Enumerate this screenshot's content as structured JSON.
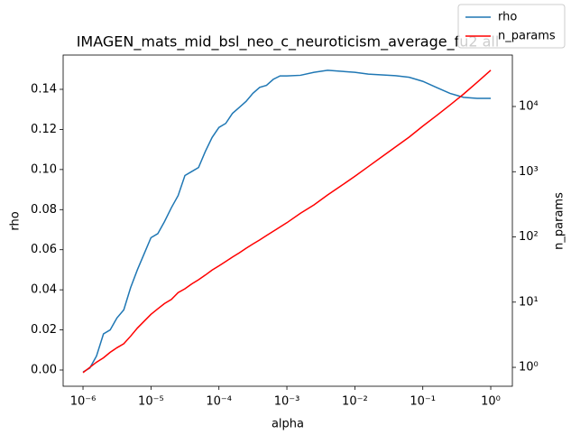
{
  "chart_data": {
    "type": "line",
    "title": "IMAGEN_mats_mid_bsl_neo_c_neuroticism_average_fu2 all",
    "x_label": "alpha",
    "y_label": "rho",
    "y2_label": "n_params",
    "x_scale": "log",
    "y2_scale": "log",
    "legend": "upper right",
    "x": [
      1e-06,
      1.26e-06,
      1.58e-06,
      2e-06,
      2.51e-06,
      3.16e-06,
      3.98e-06,
      5.01e-06,
      6.31e-06,
      7.94e-06,
      1e-05,
      1.26e-05,
      1.58e-05,
      2e-05,
      2.51e-05,
      3.16e-05,
      3.98e-05,
      5.01e-05,
      6.31e-05,
      7.94e-05,
      0.0001,
      0.000126,
      0.000158,
      0.0002,
      0.000251,
      0.000316,
      0.000398,
      0.000501,
      0.000631,
      0.000794,
      0.001,
      0.00158,
      0.00251,
      0.00398,
      0.00631,
      0.01,
      0.0158,
      0.0251,
      0.0398,
      0.0631,
      0.1,
      0.158,
      0.251,
      0.398,
      0.631,
      1
    ],
    "series": [
      {
        "name": "rho",
        "color": "#1f77b4",
        "axis": "y",
        "values": [
          -0.001,
          0.001,
          0.007,
          0.018,
          0.02,
          0.026,
          0.03,
          0.041,
          0.05,
          0.058,
          0.066,
          0.068,
          0.074,
          0.081,
          0.087,
          0.097,
          0.099,
          0.101,
          0.109,
          0.116,
          0.121,
          0.123,
          0.128,
          0.131,
          0.134,
          0.138,
          0.141,
          0.142,
          0.145,
          0.1467,
          0.1467,
          0.147,
          0.1485,
          0.1495,
          0.149,
          0.1485,
          0.1476,
          0.1472,
          0.1468,
          0.146,
          0.144,
          0.141,
          0.138,
          0.136,
          0.1355,
          0.1355
        ]
      },
      {
        "name": "n_params",
        "color": "#ff0000",
        "axis": "y2",
        "values": [
          0.83,
          1.0,
          1.2,
          1.4,
          1.7,
          2.0,
          2.3,
          3.0,
          4.0,
          5.1,
          6.5,
          7.9,
          9.5,
          11,
          14,
          16,
          19,
          22,
          26,
          31,
          36,
          42,
          49,
          57,
          67,
          78,
          90,
          105,
          122,
          142,
          165,
          230,
          310,
          440,
          610,
          850,
          1200,
          1700,
          2400,
          3400,
          5000,
          7200,
          10500,
          15500,
          23500,
          36000
        ]
      }
    ],
    "xlim": [
      5.1e-07,
      2.08
    ],
    "xticks": [
      {
        "value": 1e-06,
        "label": "10⁻⁶"
      },
      {
        "value": 1e-05,
        "label": "10⁻⁵"
      },
      {
        "value": 0.0001,
        "label": "10⁻⁴"
      },
      {
        "value": 0.001,
        "label": "10⁻³"
      },
      {
        "value": 0.01,
        "label": "10⁻²"
      },
      {
        "value": 0.1,
        "label": "10⁻¹"
      },
      {
        "value": 1,
        "label": "10⁰"
      }
    ],
    "ylim": [
      -0.0081,
      0.1571
    ],
    "yticks": [
      {
        "value": 0,
        "label": "0.00"
      },
      {
        "value": 0.02,
        "label": "0.02"
      },
      {
        "value": 0.04,
        "label": "0.04"
      },
      {
        "value": 0.06,
        "label": "0.06"
      },
      {
        "value": 0.08,
        "label": "0.08"
      },
      {
        "value": 0.1,
        "label": "0.10"
      },
      {
        "value": 0.12,
        "label": "0.12"
      },
      {
        "value": 0.14,
        "label": "0.14"
      }
    ],
    "y2lim": [
      0.513,
      61500
    ],
    "y2ticks": [
      {
        "value": 1,
        "label": "10⁰"
      },
      {
        "value": 10,
        "label": "10¹"
      },
      {
        "value": 100,
        "label": "10²"
      },
      {
        "value": 1000,
        "label": "10³"
      },
      {
        "value": 10000,
        "label": "10⁴"
      }
    ]
  }
}
